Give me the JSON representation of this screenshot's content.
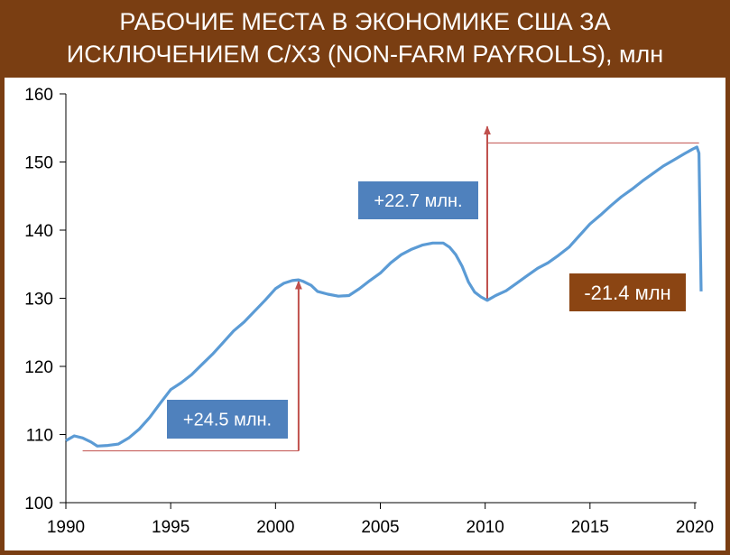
{
  "title_line1": "РАБОЧИЕ МЕСТА В ЭКОНОМИКЕ США ЗА",
  "title_line2": "ИСКЛЮЧЕНИЕМ С/Х3 (NON-FARM PAYROLLS), млн",
  "colors": {
    "frame": "#7a3e12",
    "line": "#5b9bd5",
    "arrow": "#c0504d",
    "blue_box": "#4f81bd",
    "brown_box": "#8b4513"
  },
  "chart_data": {
    "type": "line",
    "title": "РАБОЧИЕ МЕСТА В ЭКОНОМИКЕ США ЗА ИСКЛЮЧЕНИЕМ С/Х3 (NON-FARM PAYROLLS), млн",
    "xlabel": "",
    "ylabel": "",
    "xlim": [
      1990,
      2020.5
    ],
    "ylim": [
      100,
      160
    ],
    "xticks": [
      1990,
      1995,
      2000,
      2005,
      2010,
      2015,
      2020
    ],
    "yticks": [
      100,
      110,
      120,
      130,
      140,
      150,
      160
    ],
    "grid": false,
    "series": [
      {
        "x": [
          1990.0,
          1990.4,
          1990.8,
          1991.2,
          1991.5,
          1992.0,
          1992.5,
          1993.0,
          1993.5,
          1994.0,
          1994.5,
          1995.0,
          1995.5,
          1996.0,
          1996.5,
          1997.0,
          1997.5,
          1998.0,
          1998.5,
          1999.0,
          1999.5,
          2000.0,
          2000.4,
          2000.8,
          2001.1,
          2001.3,
          2001.7,
          2002.0,
          2002.5,
          2003.0,
          2003.5,
          2004.0,
          2004.5,
          2005.0,
          2005.5,
          2006.0,
          2006.5,
          2007.0,
          2007.5,
          2008.0,
          2008.3,
          2008.6,
          2008.9,
          2009.2,
          2009.5,
          2009.8,
          2010.1,
          2010.5,
          2011.0,
          2011.5,
          2012.0,
          2012.5,
          2013.0,
          2013.5,
          2014.0,
          2014.5,
          2015.0,
          2015.5,
          2016.0,
          2016.5,
          2017.0,
          2017.5,
          2018.0,
          2018.5,
          2019.0,
          2019.5,
          2019.9,
          2020.1,
          2020.2,
          2020.3
        ],
        "values": [
          109.1,
          109.8,
          109.5,
          108.9,
          108.3,
          108.4,
          108.6,
          109.5,
          110.8,
          112.5,
          114.6,
          116.6,
          117.6,
          118.8,
          120.3,
          121.8,
          123.5,
          125.2,
          126.5,
          128.1,
          129.7,
          131.4,
          132.2,
          132.6,
          132.7,
          132.5,
          131.9,
          131.0,
          130.6,
          130.3,
          130.4,
          131.4,
          132.6,
          133.7,
          135.2,
          136.4,
          137.2,
          137.8,
          138.1,
          138.1,
          137.5,
          136.4,
          134.7,
          132.4,
          130.9,
          130.2,
          129.7,
          130.4,
          131.1,
          132.2,
          133.3,
          134.4,
          135.2,
          136.3,
          137.5,
          139.2,
          140.9,
          142.2,
          143.6,
          144.9,
          146.0,
          147.2,
          148.3,
          149.4,
          150.3,
          151.2,
          151.9,
          152.2,
          151.3,
          131.0
        ]
      }
    ],
    "annotations": [
      {
        "text": "+24.5 млн.",
        "style": "blue-box"
      },
      {
        "text": "+22.7 млн.",
        "style": "blue-box"
      },
      {
        "text": "-21.4 млн",
        "style": "brown-box"
      }
    ]
  }
}
